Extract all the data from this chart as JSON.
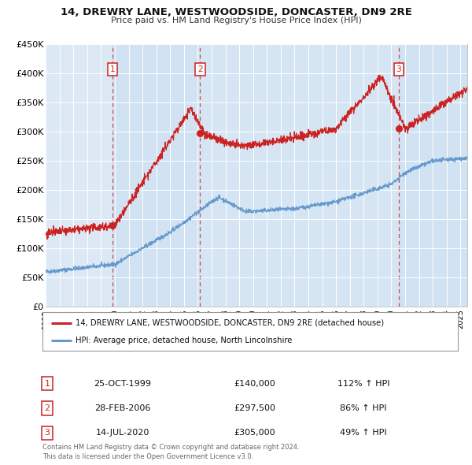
{
  "title": "14, DREWRY LANE, WESTWOODSIDE, DONCASTER, DN9 2RE",
  "subtitle": "Price paid vs. HM Land Registry's House Price Index (HPI)",
  "background_color": "#ffffff",
  "plot_background_color": "#dce9f5",
  "shade_color": "#c8dcf0",
  "grid_color": "#ffffff",
  "hpi_line_color": "#6699cc",
  "price_line_color": "#cc2222",
  "sale_marker_color": "#cc2222",
  "dashed_line_color": "#cc3333",
  "xmin": 1995.0,
  "xmax": 2025.5,
  "ymin": 0,
  "ymax": 450000,
  "yticks": [
    0,
    50000,
    100000,
    150000,
    200000,
    250000,
    300000,
    350000,
    400000,
    450000
  ],
  "ytick_labels": [
    "£0",
    "£50K",
    "£100K",
    "£150K",
    "£200K",
    "£250K",
    "£300K",
    "£350K",
    "£400K",
    "£450K"
  ],
  "xticks": [
    1995,
    1996,
    1997,
    1998,
    1999,
    2000,
    2001,
    2002,
    2003,
    2004,
    2005,
    2006,
    2007,
    2008,
    2009,
    2010,
    2011,
    2012,
    2013,
    2014,
    2015,
    2016,
    2017,
    2018,
    2019,
    2020,
    2021,
    2022,
    2023,
    2024,
    2025
  ],
  "sale_events": [
    {
      "num": 1,
      "year": 1999.82,
      "price": 140000,
      "date": "25-OCT-1999",
      "pct": "112%",
      "dir": "↑"
    },
    {
      "num": 2,
      "year": 2006.17,
      "price": 297500,
      "date": "28-FEB-2006",
      "pct": "86%",
      "dir": "↑"
    },
    {
      "num": 3,
      "year": 2020.54,
      "price": 305000,
      "date": "14-JUL-2020",
      "pct": "49%",
      "dir": "↑"
    }
  ],
  "legend_label_red": "14, DREWRY LANE, WESTWOODSIDE, DONCASTER, DN9 2RE (detached house)",
  "legend_label_blue": "HPI: Average price, detached house, North Lincolnshire",
  "footer_line1": "Contains HM Land Registry data © Crown copyright and database right 2024.",
  "footer_line2": "This data is licensed under the Open Government Licence v3.0."
}
